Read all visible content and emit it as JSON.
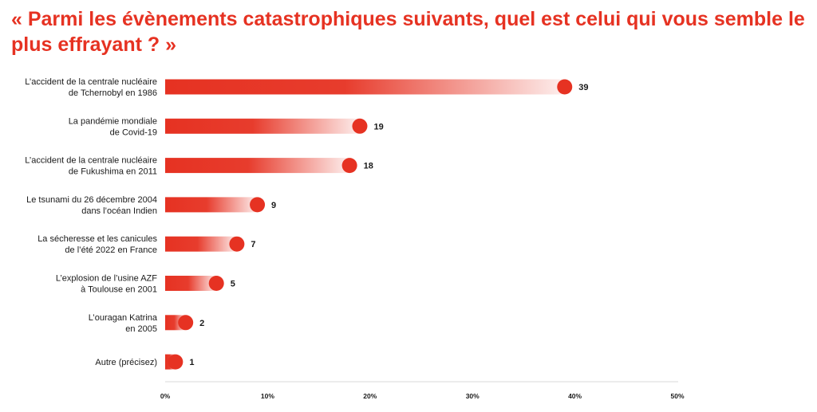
{
  "chart_data": {
    "type": "bar",
    "title": "« Parmi les évènements catastrophiques suivants, quel est celui qui vous semble le plus effrayant ? »",
    "categories": [
      [
        "L’accident de la centrale nucléaire",
        "de Tchernobyl en 1986"
      ],
      [
        "La pandémie mondiale",
        "de Covid-19"
      ],
      [
        "L’accident de la centrale nucléaire",
        "de Fukushima en 2011"
      ],
      [
        "Le tsunami du 26 décembre 2004",
        "dans l’océan Indien"
      ],
      [
        "La sécheresse et les canicules",
        "de l’été 2022 en France"
      ],
      [
        "L’explosion de l’usine AZF",
        "à Toulouse en 2001"
      ],
      [
        "L’ouragan Katrina",
        "en 2005"
      ],
      [
        "Autre (précisez)"
      ]
    ],
    "values": [
      39,
      19,
      18,
      9,
      7,
      5,
      2,
      1
    ],
    "xlim": [
      0,
      50
    ],
    "xticks": [
      0,
      10,
      20,
      30,
      40,
      50
    ],
    "xtick_labels": [
      "0%",
      "10%",
      "20%",
      "30%",
      "40%",
      "50%"
    ],
    "orientation": "horizontal",
    "grid": false,
    "colors": {
      "accent": "#e63222",
      "text": "#1a1a1a",
      "axis": "#d9d9d9"
    }
  }
}
